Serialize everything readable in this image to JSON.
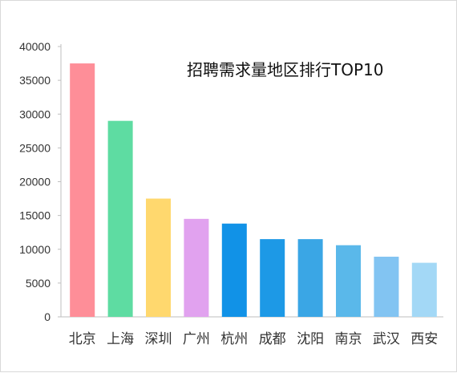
{
  "chart_data": {
    "type": "bar",
    "title": "招聘需求量地区排行TOP10",
    "categories": [
      "北京",
      "上海",
      "深圳",
      "广州",
      "杭州",
      "成都",
      "沈阳",
      "南京",
      "武汉",
      "西安"
    ],
    "values": [
      37500,
      29000,
      17500,
      14500,
      13800,
      11500,
      11500,
      10600,
      8900,
      8000
    ],
    "colors": [
      "#fe8e98",
      "#5edca2",
      "#ffd86e",
      "#e1a2ef",
      "#1192e7",
      "#1d99e6",
      "#3aa6e5",
      "#5ab8ea",
      "#82c4f2",
      "#a3d8f6"
    ],
    "ylim": [
      0,
      40000
    ],
    "yticks": [
      0,
      5000,
      10000,
      15000,
      20000,
      25000,
      30000,
      35000,
      40000
    ],
    "xlabel": "",
    "ylabel": "",
    "grid": false,
    "legend": "none"
  }
}
